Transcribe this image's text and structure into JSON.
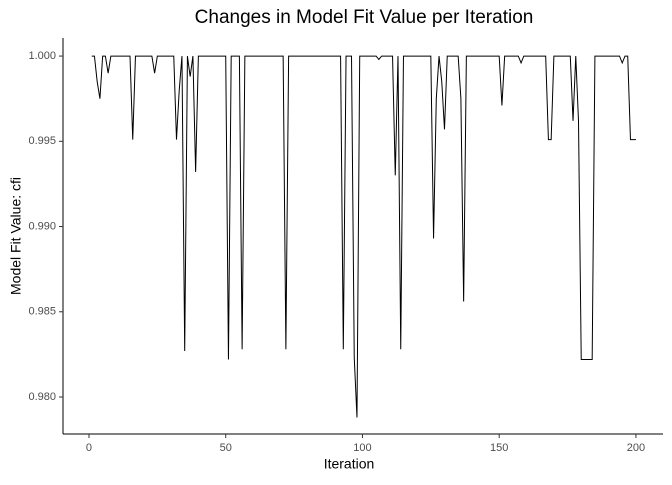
{
  "chart_data": {
    "type": "line",
    "title": "Changes in Model Fit Value per Iteration",
    "x_label": "Iteration",
    "y_label": "Model Fit Value: cfi",
    "color": "#000000",
    "x": [
      1,
      2,
      3,
      4,
      5,
      6,
      7,
      8,
      9,
      10,
      11,
      12,
      13,
      14,
      15,
      16,
      17,
      18,
      19,
      20,
      21,
      22,
      23,
      24,
      25,
      26,
      27,
      28,
      29,
      30,
      31,
      32,
      33,
      34,
      35,
      36,
      37,
      38,
      39,
      40,
      41,
      42,
      43,
      44,
      45,
      46,
      47,
      48,
      49,
      50,
      51,
      52,
      53,
      54,
      55,
      56,
      57,
      58,
      59,
      60,
      61,
      62,
      63,
      64,
      65,
      66,
      67,
      68,
      69,
      70,
      71,
      72,
      73,
      74,
      75,
      76,
      77,
      78,
      79,
      80,
      81,
      82,
      83,
      84,
      85,
      86,
      87,
      88,
      89,
      90,
      91,
      92,
      93,
      94,
      95,
      96,
      97,
      98,
      99,
      100,
      101,
      102,
      103,
      104,
      105,
      106,
      107,
      108,
      109,
      110,
      111,
      112,
      113,
      114,
      115,
      116,
      117,
      118,
      119,
      120,
      121,
      122,
      123,
      124,
      125,
      126,
      127,
      128,
      129,
      130,
      131,
      132,
      133,
      134,
      135,
      136,
      137,
      138,
      139,
      140,
      141,
      142,
      143,
      144,
      145,
      146,
      147,
      148,
      149,
      150,
      151,
      152,
      153,
      154,
      155,
      156,
      157,
      158,
      159,
      160,
      161,
      162,
      163,
      164,
      165,
      166,
      167,
      168,
      169,
      170,
      171,
      172,
      173,
      174,
      175,
      176,
      177,
      178,
      179,
      180,
      181,
      182,
      183,
      184,
      185,
      186,
      187,
      188,
      189,
      190,
      191,
      192,
      193,
      194,
      195,
      196,
      197,
      198,
      199,
      200
    ],
    "values": [
      1,
      1,
      0.9985,
      0.9975,
      1,
      1,
      0.999,
      1,
      1,
      1,
      1,
      1,
      1,
      1,
      1,
      0.9951,
      1,
      1,
      1,
      1,
      1,
      1,
      1,
      0.999,
      1,
      1,
      1,
      1,
      1,
      1,
      1,
      0.9951,
      0.998,
      1,
      0.9827,
      1,
      0.9988,
      1,
      0.9932,
      1,
      1,
      1,
      1,
      1,
      1,
      1,
      1,
      1,
      1,
      1,
      0.9822,
      1,
      1,
      1,
      1,
      0.9828,
      1,
      1,
      1,
      1,
      1,
      1,
      1,
      1,
      1,
      1,
      1,
      1,
      1,
      1,
      1,
      0.9828,
      1,
      1,
      1,
      1,
      1,
      1,
      1,
      1,
      1,
      1,
      1,
      1,
      1,
      1,
      1,
      1,
      1,
      1,
      1,
      1,
      0.9828,
      1,
      1,
      1,
      0.9823,
      0.9788,
      1,
      1,
      1,
      1,
      1,
      1,
      1,
      0.9998,
      1,
      1,
      1,
      1,
      1,
      0.993,
      1,
      0.9828,
      1,
      1,
      1,
      1,
      1,
      1,
      1,
      1,
      1,
      1,
      1,
      0.9893,
      0.9975,
      1,
      0.9985,
      0.9957,
      1,
      1,
      1,
      1,
      1,
      0.9975,
      0.9856,
      1,
      1,
      1,
      1,
      1,
      1,
      1,
      1,
      1,
      1,
      1,
      1,
      1,
      0.9971,
      1,
      1,
      1,
      1,
      1,
      1,
      0.9996,
      1,
      1,
      1,
      1,
      1,
      1,
      1,
      1,
      1,
      0.9951,
      0.9951,
      1,
      1,
      1,
      1,
      1,
      1,
      1,
      0.9962,
      1,
      0.9962,
      0.9822,
      0.9822,
      0.9822,
      0.9822,
      0.9822,
      1,
      1,
      1,
      1,
      1,
      1,
      1,
      1,
      1,
      1,
      0.9996,
      1,
      1,
      0.9951,
      0.9951,
      0.9951
    ],
    "xlim": [
      -9.5,
      209.9
    ],
    "ylim": [
      0.97783,
      1.00106
    ],
    "xticks": [
      0,
      50,
      100,
      150,
      200
    ],
    "yticks": [
      {
        "value": 0.98,
        "label": "0.980"
      },
      {
        "value": 0.985,
        "label": "0.985"
      },
      {
        "value": 0.99,
        "label": "0.990"
      },
      {
        "value": 0.995,
        "label": "0.995"
      },
      {
        "value": 1,
        "label": "1.000"
      }
    ],
    "grid": false
  }
}
